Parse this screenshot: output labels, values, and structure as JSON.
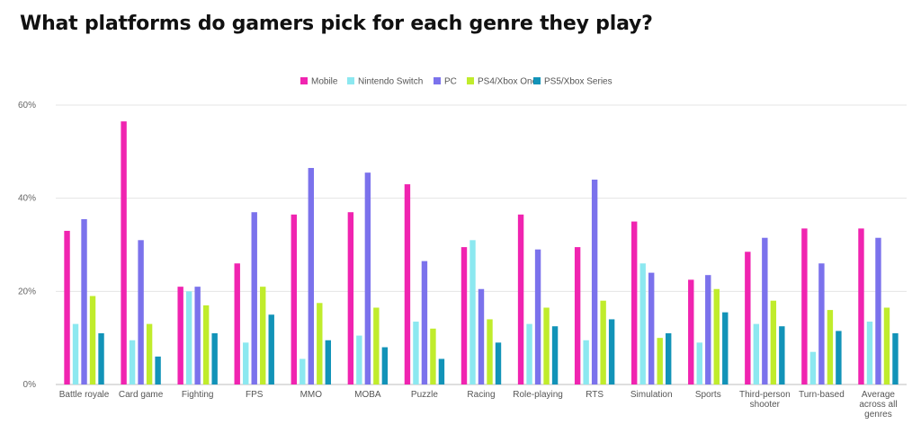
{
  "title": "What platforms do gamers pick for each genre they play?",
  "chart_data": {
    "type": "bar",
    "title": "What platforms do gamers pick for each genre they play?",
    "xlabel": "",
    "ylabel": "",
    "ylim": [
      0,
      60
    ],
    "yticks": [
      "0%",
      "20%",
      "40%",
      "60%"
    ],
    "ytick_values": [
      0,
      20,
      40,
      60
    ],
    "grid": true,
    "legend_position": "top",
    "categories": [
      [
        "Battle royale"
      ],
      [
        "Card game"
      ],
      [
        "Fighting"
      ],
      [
        "FPS"
      ],
      [
        "MMO"
      ],
      [
        "MOBA"
      ],
      [
        "Puzzle"
      ],
      [
        "Racing"
      ],
      [
        "Role-playing"
      ],
      [
        "RTS"
      ],
      [
        "Simulation"
      ],
      [
        "Sports"
      ],
      [
        "Third-person",
        "shooter"
      ],
      [
        "Turn-based"
      ],
      [
        "Average",
        "across all",
        "genres"
      ]
    ],
    "series": [
      {
        "name": "Mobile",
        "color": "#f024b0",
        "values": [
          33,
          56.5,
          21,
          26,
          36.5,
          37,
          43,
          29.5,
          36.5,
          29.5,
          35,
          22.5,
          28.5,
          33.5,
          33.5
        ]
      },
      {
        "name": "Nintendo Switch",
        "color": "#8ce8f0",
        "values": [
          13,
          9.5,
          20,
          9,
          5.5,
          10.5,
          13.5,
          31,
          13,
          9.5,
          26,
          9,
          13,
          7,
          13.5
        ]
      },
      {
        "name": "PC",
        "color": "#7b72ec",
        "values": [
          35.5,
          31,
          21,
          37,
          46.5,
          45.5,
          26.5,
          20.5,
          29,
          44,
          24,
          23.5,
          31.5,
          26,
          31.5
        ]
      },
      {
        "name": "PS4/Xbox One",
        "color": "#c0ec2c",
        "values": [
          19,
          13,
          17,
          21,
          17.5,
          16.5,
          12,
          14,
          16.5,
          18,
          10,
          20.5,
          18,
          16,
          16.5
        ]
      },
      {
        "name": "PS5/Xbox Series",
        "color": "#1293b8",
        "values": [
          11,
          6,
          11,
          15,
          9.5,
          8,
          5.5,
          9,
          12.5,
          14,
          11,
          15.5,
          12.5,
          11.5,
          11
        ]
      }
    ]
  }
}
